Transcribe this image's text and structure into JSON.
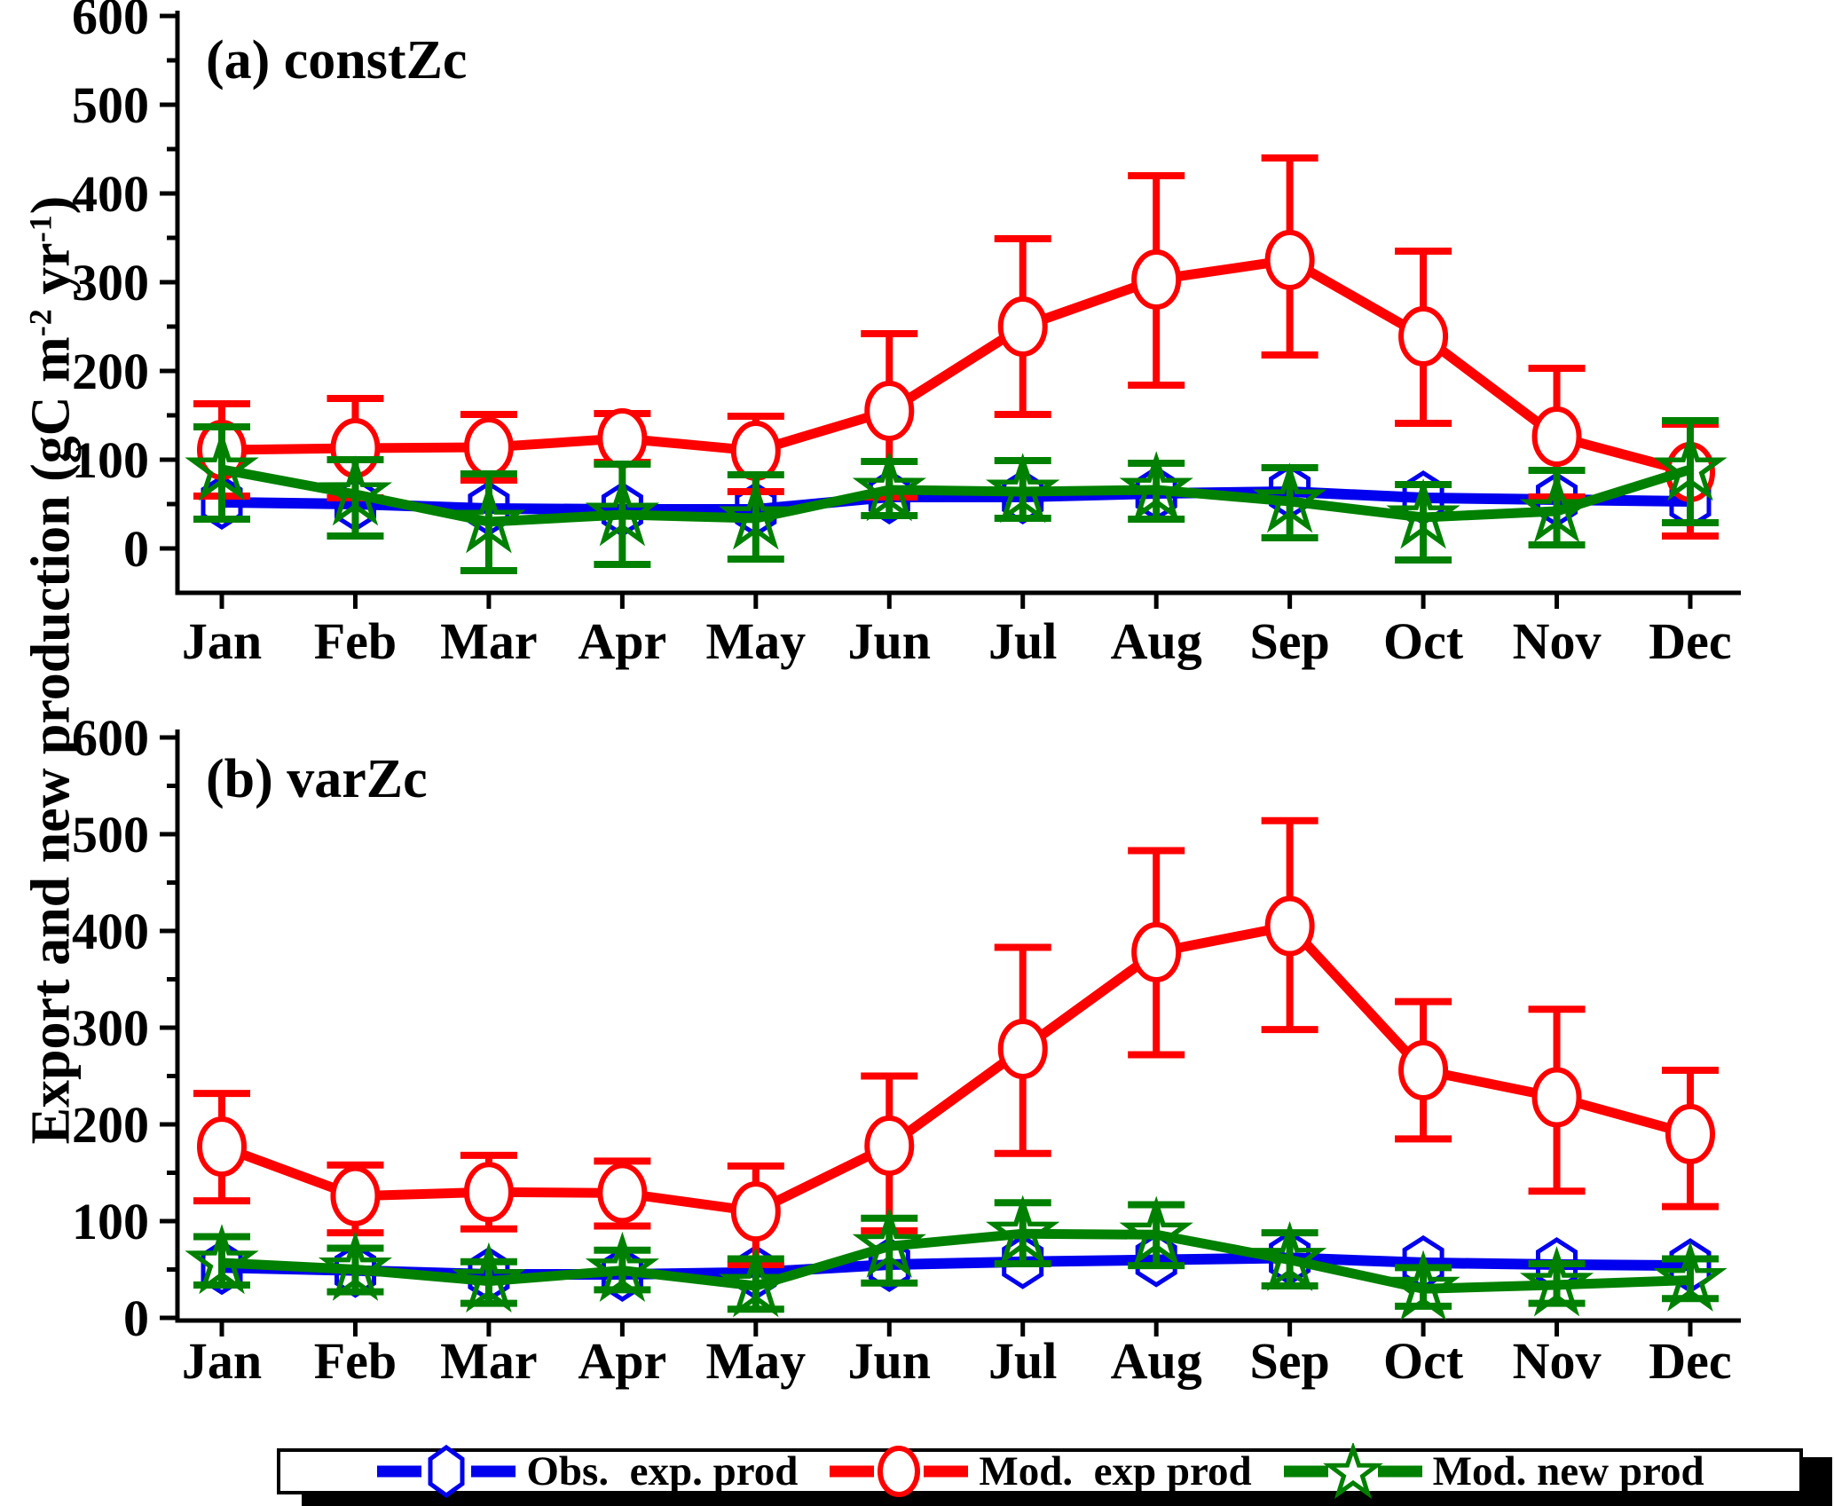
{
  "figure": {
    "background": "#ffffff"
  },
  "ylabel": {
    "text": "Export and new production (gC m-2 yr-1)",
    "parts": [
      {
        "t": "Export and new production (gC m"
      },
      {
        "t": "-2",
        "sup": true
      },
      {
        "t": " yr",
        "sup": false
      },
      {
        "t": "-1",
        "sup": true
      },
      {
        "t": ")",
        "sup": false
      }
    ]
  },
  "series_meta": [
    {
      "id": "obs-exp-prod",
      "label": "Obs.  exp. prod",
      "color": "#0000ee",
      "marker": "hexagon",
      "has_error": false
    },
    {
      "id": "mod-exp-prod",
      "label": "Mod.  exp prod",
      "color": "#ff0000",
      "marker": "circle",
      "has_error": true
    },
    {
      "id": "mod-new-prod",
      "label": "Mod. new prod",
      "color": "#008000",
      "marker": "star",
      "has_error": true
    }
  ],
  "chart_data": [
    {
      "type": "line",
      "panel": "a",
      "title": "(a) constZc",
      "categories": [
        "Jan",
        "Feb",
        "Mar",
        "Apr",
        "May",
        "Jun",
        "Jul",
        "Aug",
        "Sep",
        "Oct",
        "Nov",
        "Dec"
      ],
      "ylim": [
        0,
        600
      ],
      "ytick_step": 100,
      "yminor_step": 50,
      "grid": false,
      "series": [
        {
          "name": "Obs. exp. prod",
          "values": [
            52,
            50,
            45,
            44,
            44,
            58,
            58,
            62,
            64,
            57,
            55,
            53
          ]
        },
        {
          "name": "Mod. exp prod",
          "values": [
            111,
            113,
            114,
            124,
            110,
            155,
            250,
            303,
            325,
            239,
            126,
            86
          ],
          "err_lo": [
            59,
            57,
            77,
            97,
            64,
            58,
            151,
            184,
            218,
            141,
            58,
            14
          ],
          "err_hi": [
            163,
            169,
            151,
            152,
            149,
            242,
            349,
            420,
            440,
            335,
            203,
            140
          ]
        },
        {
          "name": "Mod. new prod",
          "values": [
            89,
            61,
            30,
            38,
            34,
            66,
            64,
            66,
            53,
            35,
            42,
            89
          ],
          "err_lo": [
            33,
            14,
            -25,
            -18,
            -12,
            37,
            34,
            33,
            12,
            -13,
            4,
            29
          ],
          "err_hi": [
            137,
            100,
            84,
            95,
            83,
            98,
            99,
            96,
            91,
            72,
            88,
            144
          ]
        }
      ]
    },
    {
      "type": "line",
      "panel": "b",
      "title": "(b) varZc",
      "categories": [
        "Jan",
        "Feb",
        "Mar",
        "Apr",
        "May",
        "Jun",
        "Jul",
        "Aug",
        "Sep",
        "Oct",
        "Nov",
        "Dec"
      ],
      "ylim": [
        0,
        600
      ],
      "ytick_step": 100,
      "yminor_step": 50,
      "grid": false,
      "series": [
        {
          "name": "Obs. exp. prod",
          "values": [
            52,
            49,
            45,
            45,
            47,
            55,
            58,
            60,
            62,
            57,
            55,
            54
          ]
        },
        {
          "name": "Mod. exp prod",
          "values": [
            177,
            126,
            130,
            129,
            110,
            178,
            278,
            378,
            405,
            256,
            228,
            190
          ],
          "err_lo": [
            121,
            88,
            92,
            95,
            55,
            90,
            170,
            272,
            298,
            185,
            131,
            115
          ],
          "err_hi": [
            232,
            158,
            168,
            162,
            157,
            250,
            383,
            483,
            514,
            327,
            319,
            256
          ]
        },
        {
          "name": "Mod. new prod",
          "values": [
            57,
            50,
            38,
            49,
            33,
            74,
            87,
            86,
            60,
            30,
            34,
            39
          ],
          "err_lo": [
            34,
            27,
            15,
            29,
            9,
            36,
            56,
            54,
            33,
            12,
            15,
            20
          ],
          "err_hi": [
            84,
            72,
            58,
            70,
            61,
            103,
            119,
            117,
            88,
            52,
            56,
            61
          ]
        }
      ]
    }
  ],
  "legend": {
    "position": "bottom"
  }
}
